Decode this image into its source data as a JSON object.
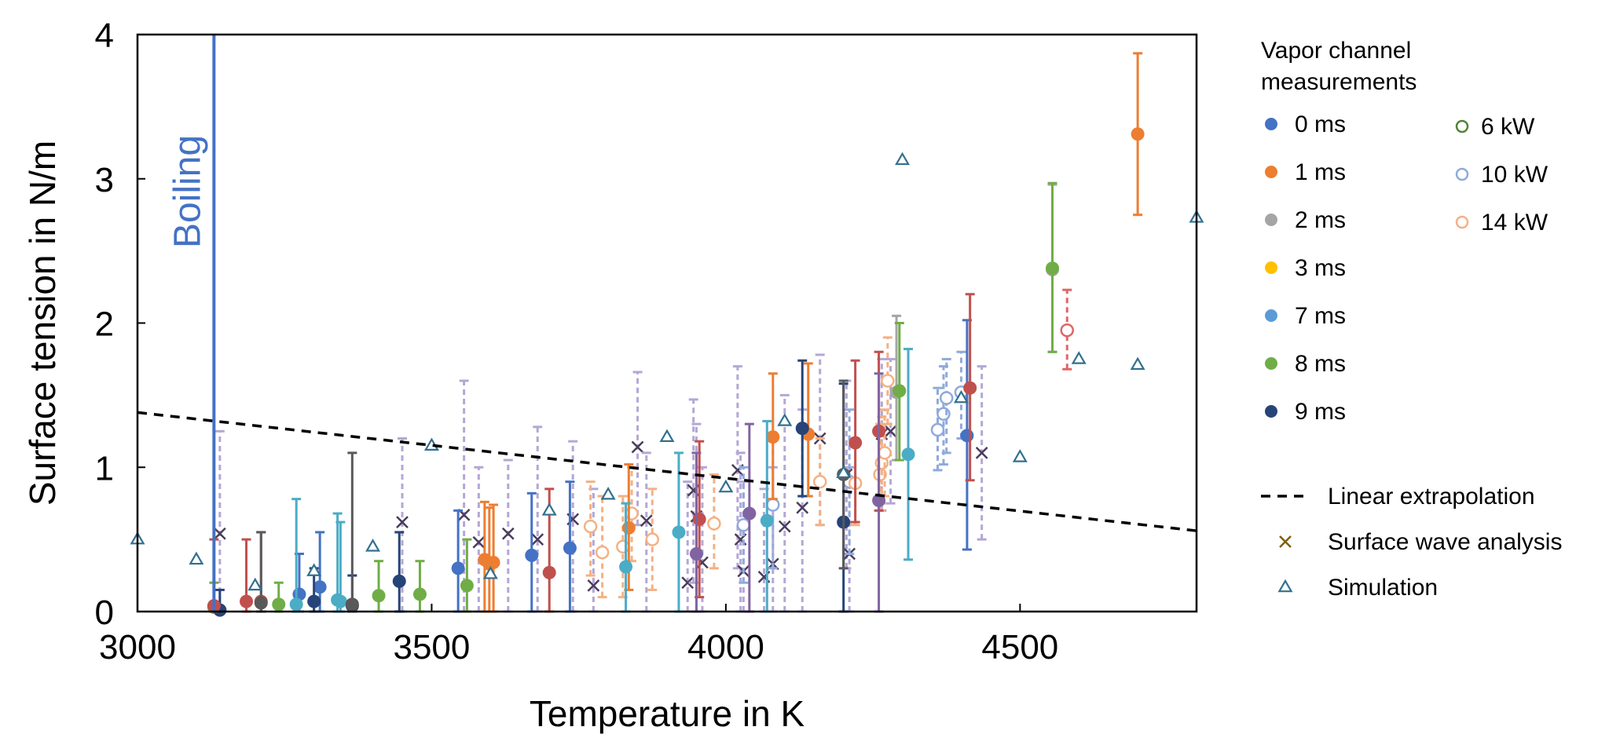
{
  "chart_data": {
    "type": "scatter",
    "title": "",
    "xlabel": "Temperature in K",
    "ylabel": "Surface tension in N/m",
    "xlim": [
      3000,
      4800
    ],
    "ylim": [
      0,
      4
    ],
    "x_ticks": [
      "3000",
      "3500",
      "4000",
      "4500"
    ],
    "y_ticks": [
      "0",
      "1",
      "2",
      "3",
      "4"
    ],
    "grid": false,
    "boiling": {
      "label": "Boiling",
      "x": 3130,
      "color": "#4472c4"
    },
    "extrapolation": {
      "name": "Linear extrapolation",
      "x": [
        3000,
        4800
      ],
      "y": [
        1.38,
        0.56
      ]
    },
    "legend": {
      "title": "Vapor channel measurements",
      "placement": "right",
      "time_series_label_suffix": "",
      "extra": {
        "linear": "Linear extrapolation",
        "surface_wave": "Surface wave analysis",
        "simulation": "Simulation"
      }
    },
    "time_series": [
      {
        "name": "0 ms",
        "color": "#4472c4",
        "points": [
          {
            "x": 3545,
            "y": 0.3,
            "lo": 0.0,
            "hi": 0.7
          },
          {
            "x": 3670,
            "y": 0.39,
            "lo": 0.0,
            "hi": 0.82
          },
          {
            "x": 3735,
            "y": 0.44,
            "lo": 0.0,
            "hi": 0.9
          },
          {
            "x": 4410,
            "y": 1.22,
            "lo": 0.43,
            "hi": 2.02
          },
          {
            "x": 3310,
            "y": 0.17,
            "lo": 0.0,
            "hi": 0.55
          },
          {
            "x": 3275,
            "y": 0.12,
            "lo": 0.0,
            "hi": 0.4
          }
        ]
      },
      {
        "name": "1 ms",
        "color": "#ed7d31",
        "points": [
          {
            "x": 3590,
            "y": 0.36,
            "lo": 0.0,
            "hi": 0.76
          },
          {
            "x": 3598,
            "y": 0.33,
            "lo": 0.0,
            "hi": 0.72
          },
          {
            "x": 3605,
            "y": 0.34,
            "lo": 0.0,
            "hi": 0.74
          },
          {
            "x": 3835,
            "y": 0.58,
            "lo": 0.15,
            "hi": 1.02
          },
          {
            "x": 4080,
            "y": 1.21,
            "lo": 0.78,
            "hi": 1.65
          },
          {
            "x": 4140,
            "y": 1.23,
            "lo": 0.8,
            "hi": 1.72
          },
          {
            "x": 4700,
            "y": 3.31,
            "lo": 2.75,
            "hi": 3.87
          }
        ]
      },
      {
        "name": "2 ms",
        "color": "#a5a5a5",
        "points": [
          {
            "x": 4555,
            "y": 2.37,
            "lo": 1.8,
            "hi": 2.96
          },
          {
            "x": 4290,
            "y": 1.52,
            "lo": 1.05,
            "hi": 2.05
          }
        ]
      },
      {
        "name": "3 ms",
        "color": "#ffc000",
        "points": []
      },
      {
        "name": "7 ms",
        "color": "#5b9bd5",
        "points": []
      },
      {
        "name": "8 ms",
        "color": "#70ad47",
        "points": [
          {
            "x": 3130,
            "y": 0.03,
            "lo": 0.0,
            "hi": 0.2
          },
          {
            "x": 3240,
            "y": 0.05,
            "lo": 0.0,
            "hi": 0.2
          },
          {
            "x": 3410,
            "y": 0.11,
            "lo": 0.0,
            "hi": 0.35
          },
          {
            "x": 3480,
            "y": 0.12,
            "lo": 0.0,
            "hi": 0.35
          },
          {
            "x": 3560,
            "y": 0.18,
            "lo": 0.0,
            "hi": 0.5
          },
          {
            "x": 4295,
            "y": 1.53,
            "lo": 1.05,
            "hi": 2.0
          },
          {
            "x": 4555,
            "y": 2.38,
            "lo": 1.8,
            "hi": 2.97
          }
        ]
      },
      {
        "name": "9 ms",
        "color": "#264478",
        "points": [
          {
            "x": 3140,
            "y": 0.01,
            "lo": 0.0,
            "hi": 0.15
          },
          {
            "x": 3300,
            "y": 0.07,
            "lo": 0.0,
            "hi": 0.3
          },
          {
            "x": 3365,
            "y": 0.04,
            "lo": 0.0,
            "hi": 0.25
          },
          {
            "x": 3445,
            "y": 0.21,
            "lo": 0.0,
            "hi": 0.55
          },
          {
            "x": 4130,
            "y": 1.27,
            "lo": 0.8,
            "hi": 1.74
          },
          {
            "x": 4200,
            "y": 0.62,
            "lo": 0.0,
            "hi": 1.58
          }
        ]
      }
    ],
    "extra_series": [
      {
        "name": "",
        "color": "#c0504d",
        "points": [
          {
            "x": 3130,
            "y": 0.04,
            "lo": 0.0,
            "hi": 0.5
          },
          {
            "x": 3185,
            "y": 0.07,
            "lo": 0.0,
            "hi": 0.5
          },
          {
            "x": 3210,
            "y": 0.07,
            "lo": 0.0,
            "hi": 0.55
          },
          {
            "x": 3700,
            "y": 0.27,
            "lo": 0.0,
            "hi": 0.85
          },
          {
            "x": 3955,
            "y": 0.64,
            "lo": 0.1,
            "hi": 1.18
          },
          {
            "x": 4220,
            "y": 1.17,
            "lo": 0.62,
            "hi": 1.74
          },
          {
            "x": 4260,
            "y": 1.25,
            "lo": 0.7,
            "hi": 1.8
          },
          {
            "x": 4415,
            "y": 1.55,
            "lo": 0.91,
            "hi": 2.2
          }
        ]
      },
      {
        "name": "",
        "color": "#4bacc6",
        "points": [
          {
            "x": 3270,
            "y": 0.05,
            "lo": 0.0,
            "hi": 0.78
          },
          {
            "x": 3340,
            "y": 0.08,
            "lo": 0.0,
            "hi": 0.68
          },
          {
            "x": 3345,
            "y": 0.07,
            "lo": 0.0,
            "hi": 0.62
          },
          {
            "x": 3830,
            "y": 0.31,
            "lo": 0.0,
            "hi": 0.75
          },
          {
            "x": 3920,
            "y": 0.55,
            "lo": 0.0,
            "hi": 1.1
          },
          {
            "x": 4070,
            "y": 0.63,
            "lo": 0.0,
            "hi": 1.32
          },
          {
            "x": 4310,
            "y": 1.09,
            "lo": 0.36,
            "hi": 1.82
          }
        ]
      },
      {
        "name": "",
        "color": "#8064a2",
        "points": [
          {
            "x": 3950,
            "y": 0.4,
            "lo": 0.0,
            "hi": 1.1
          },
          {
            "x": 4040,
            "y": 0.68,
            "lo": 0.0,
            "hi": 1.3
          },
          {
            "x": 4260,
            "y": 0.77,
            "lo": 0.0,
            "hi": 1.65
          }
        ]
      },
      {
        "name": "",
        "color": "#595959",
        "points": [
          {
            "x": 3210,
            "y": 0.06,
            "lo": 0.0,
            "hi": 0.55
          },
          {
            "x": 3365,
            "y": 0.05,
            "lo": 0.0,
            "hi": 1.1
          },
          {
            "x": 4200,
            "y": 0.95,
            "lo": 0.3,
            "hi": 1.6
          }
        ]
      }
    ],
    "power_series": [
      {
        "name": "6 kW",
        "color": "#548235",
        "points": []
      },
      {
        "name": "10 kW",
        "color": "#8faadc",
        "points": [
          {
            "x": 4030,
            "y": 0.6,
            "lo": 0.2,
            "hi": 1.0
          },
          {
            "x": 4080,
            "y": 0.74,
            "lo": 0.3,
            "hi": 1.2
          },
          {
            "x": 4210,
            "y": 0.9,
            "lo": 0.4,
            "hi": 1.4
          },
          {
            "x": 4360,
            "y": 1.26,
            "lo": 0.98,
            "hi": 1.55
          },
          {
            "x": 4370,
            "y": 1.37,
            "lo": 1.02,
            "hi": 1.7
          },
          {
            "x": 4375,
            "y": 1.48,
            "lo": 1.1,
            "hi": 1.75
          },
          {
            "x": 4400,
            "y": 1.52,
            "lo": 1.2,
            "hi": 1.8
          }
        ]
      },
      {
        "name": "14 kW",
        "color": "#f4b183",
        "points": [
          {
            "x": 3770,
            "y": 0.59,
            "lo": 0.25,
            "hi": 0.9
          },
          {
            "x": 3790,
            "y": 0.41,
            "lo": 0.1,
            "hi": 0.8
          },
          {
            "x": 3825,
            "y": 0.45,
            "lo": 0.1,
            "hi": 0.8
          },
          {
            "x": 3840,
            "y": 0.68,
            "lo": 0.35,
            "hi": 1.0
          },
          {
            "x": 3875,
            "y": 0.5,
            "lo": 0.15,
            "hi": 0.85
          },
          {
            "x": 3980,
            "y": 0.61,
            "lo": 0.3,
            "hi": 0.95
          },
          {
            "x": 4160,
            "y": 0.9,
            "lo": 0.6,
            "hi": 1.2
          },
          {
            "x": 4220,
            "y": 0.89,
            "lo": 0.6,
            "hi": 1.2
          },
          {
            "x": 4262,
            "y": 0.95,
            "lo": 0.7,
            "hi": 1.3
          },
          {
            "x": 4265,
            "y": 1.03,
            "lo": 0.75,
            "hi": 1.35
          },
          {
            "x": 4270,
            "y": 1.1,
            "lo": 0.8,
            "hi": 1.4
          },
          {
            "x": 4275,
            "y": 1.6,
            "lo": 1.3,
            "hi": 1.9
          }
        ]
      },
      {
        "name": "",
        "color": "#e06666",
        "points": [
          {
            "x": 4580,
            "y": 1.95,
            "lo": 1.68,
            "hi": 2.23
          }
        ]
      }
    ],
    "surface_wave": {
      "name": "Surface wave analysis",
      "marker_color": "#7f6000",
      "plotted_color": "#4a3c5c",
      "bar_color": "#b4a7d6",
      "points": [
        {
          "x": 3140,
          "y": 0.54,
          "lo": 0.0,
          "hi": 1.25
        },
        {
          "x": 3450,
          "y": 0.62,
          "lo": 0.0,
          "hi": 1.2
        },
        {
          "x": 3555,
          "y": 0.67,
          "lo": 0.0,
          "hi": 1.6
        },
        {
          "x": 3580,
          "y": 0.48,
          "lo": 0.0,
          "hi": 1.0
        },
        {
          "x": 3630,
          "y": 0.54,
          "lo": 0.0,
          "hi": 1.05
        },
        {
          "x": 3680,
          "y": 0.5,
          "lo": 0.0,
          "hi": 1.28
        },
        {
          "x": 3740,
          "y": 0.64,
          "lo": 0.0,
          "hi": 1.18
        },
        {
          "x": 3775,
          "y": 0.18,
          "lo": 0.0,
          "hi": 0.85
        },
        {
          "x": 3850,
          "y": 1.14,
          "lo": 0.6,
          "hi": 1.66
        },
        {
          "x": 3865,
          "y": 0.63,
          "lo": 0.0,
          "hi": 1.1
        },
        {
          "x": 3935,
          "y": 0.2,
          "lo": 0.0,
          "hi": 0.9
        },
        {
          "x": 3945,
          "y": 0.84,
          "lo": 0.2,
          "hi": 1.47
        },
        {
          "x": 3950,
          "y": 0.66,
          "lo": 0.0,
          "hi": 1.3
        },
        {
          "x": 3960,
          "y": 0.34,
          "lo": 0.0,
          "hi": 1.0
        },
        {
          "x": 4020,
          "y": 0.98,
          "lo": 0.3,
          "hi": 1.7
        },
        {
          "x": 4025,
          "y": 0.5,
          "lo": 0.0,
          "hi": 1.1
        },
        {
          "x": 4030,
          "y": 0.28,
          "lo": 0.0,
          "hi": 0.9
        },
        {
          "x": 4065,
          "y": 0.24,
          "lo": 0.0,
          "hi": 0.85
        },
        {
          "x": 4080,
          "y": 0.33,
          "lo": 0.0,
          "hi": 1.0
        },
        {
          "x": 4100,
          "y": 0.59,
          "lo": 0.0,
          "hi": 1.5
        },
        {
          "x": 4130,
          "y": 0.72,
          "lo": 0.0,
          "hi": 1.4
        },
        {
          "x": 4160,
          "y": 1.2,
          "lo": 0.6,
          "hi": 1.78
        },
        {
          "x": 4205,
          "y": 0.95,
          "lo": 0.3,
          "hi": 1.6
        },
        {
          "x": 4210,
          "y": 0.4,
          "lo": 0.0,
          "hi": 1.0
        },
        {
          "x": 4265,
          "y": 1.23,
          "lo": 0.7,
          "hi": 1.75
        },
        {
          "x": 4280,
          "y": 1.25,
          "lo": 0.75,
          "hi": 1.75
        },
        {
          "x": 4435,
          "y": 1.1,
          "lo": 0.5,
          "hi": 1.7
        }
      ]
    },
    "simulation": {
      "name": "Simulation",
      "color": "#31708f",
      "points": [
        {
          "x": 3000,
          "y": 0.5
        },
        {
          "x": 3100,
          "y": 0.36
        },
        {
          "x": 3200,
          "y": 0.18
        },
        {
          "x": 3300,
          "y": 0.28
        },
        {
          "x": 3400,
          "y": 0.45
        },
        {
          "x": 3500,
          "y": 1.15
        },
        {
          "x": 3600,
          "y": 0.26
        },
        {
          "x": 3700,
          "y": 0.7
        },
        {
          "x": 3800,
          "y": 0.81
        },
        {
          "x": 3900,
          "y": 1.21
        },
        {
          "x": 4000,
          "y": 0.86
        },
        {
          "x": 4100,
          "y": 1.32
        },
        {
          "x": 4200,
          "y": 0.96
        },
        {
          "x": 4300,
          "y": 3.13
        },
        {
          "x": 4400,
          "y": 1.48
        },
        {
          "x": 4500,
          "y": 1.07
        },
        {
          "x": 4600,
          "y": 1.75
        },
        {
          "x": 4700,
          "y": 1.71
        },
        {
          "x": 4800,
          "y": 2.73
        }
      ]
    }
  }
}
